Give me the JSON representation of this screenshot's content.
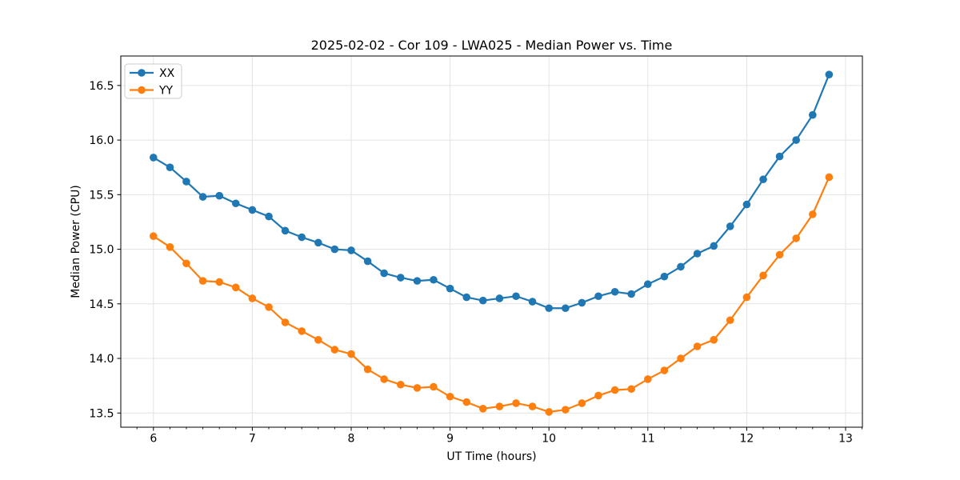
{
  "chart_data": {
    "type": "line",
    "title": "2025-02-02 - Cor 109 - LWA025 - Median Power vs. Time",
    "xlabel": "UT Time (hours)",
    "ylabel": "Median Power (CPU)",
    "xlim": [
      5.67,
      13.17
    ],
    "ylim": [
      13.37,
      16.77
    ],
    "x_ticks": [
      6,
      7,
      8,
      9,
      10,
      11,
      12,
      13
    ],
    "x_tick_labels": [
      "6",
      "7",
      "8",
      "9",
      "10",
      "11",
      "12",
      "13"
    ],
    "x_minor_tick_step": 0.1666667,
    "y_ticks": [
      13.5,
      14.0,
      14.5,
      15.0,
      15.5,
      16.0,
      16.5
    ],
    "y_tick_labels": [
      "13.5",
      "14.0",
      "14.5",
      "15.0",
      "15.5",
      "16.0",
      "16.5"
    ],
    "grid": true,
    "grid_color": "#e3e3e3",
    "background_color": "#ffffff",
    "spine_color": "#000000",
    "legend_position": "upper left",
    "x": [
      6.0,
      6.167,
      6.333,
      6.5,
      6.667,
      6.833,
      7.0,
      7.167,
      7.333,
      7.5,
      7.667,
      7.833,
      8.0,
      8.167,
      8.333,
      8.5,
      8.667,
      8.833,
      9.0,
      9.167,
      9.333,
      9.5,
      9.667,
      9.833,
      10.0,
      10.167,
      10.333,
      10.5,
      10.667,
      10.833,
      11.0,
      11.167,
      11.333,
      11.5,
      11.667,
      11.833,
      12.0,
      12.167,
      12.333,
      12.5,
      12.667,
      12.833
    ],
    "series": [
      {
        "name": "XX",
        "color": "#1f77b4",
        "marker": "circle",
        "values": [
          15.84,
          15.75,
          15.62,
          15.48,
          15.49,
          15.42,
          15.36,
          15.3,
          15.17,
          15.11,
          15.06,
          15.0,
          14.99,
          14.89,
          14.78,
          14.74,
          14.71,
          14.72,
          14.64,
          14.56,
          14.53,
          14.55,
          14.57,
          14.52,
          14.46,
          14.46,
          14.51,
          14.57,
          14.61,
          14.59,
          14.68,
          14.75,
          14.84,
          14.96,
          15.03,
          15.21,
          15.41,
          15.64,
          15.85,
          16.0,
          16.23,
          16.6
        ]
      },
      {
        "name": "YY",
        "color": "#ff7f0e",
        "marker": "circle",
        "values": [
          15.12,
          15.02,
          14.87,
          14.71,
          14.7,
          14.65,
          14.55,
          14.47,
          14.33,
          14.25,
          14.17,
          14.08,
          14.04,
          13.9,
          13.81,
          13.76,
          13.73,
          13.74,
          13.65,
          13.6,
          13.54,
          13.56,
          13.59,
          13.56,
          13.51,
          13.53,
          13.59,
          13.66,
          13.71,
          13.72,
          13.81,
          13.89,
          14.0,
          14.11,
          14.17,
          14.35,
          14.56,
          14.76,
          14.95,
          15.1,
          15.32,
          15.66
        ]
      }
    ]
  }
}
